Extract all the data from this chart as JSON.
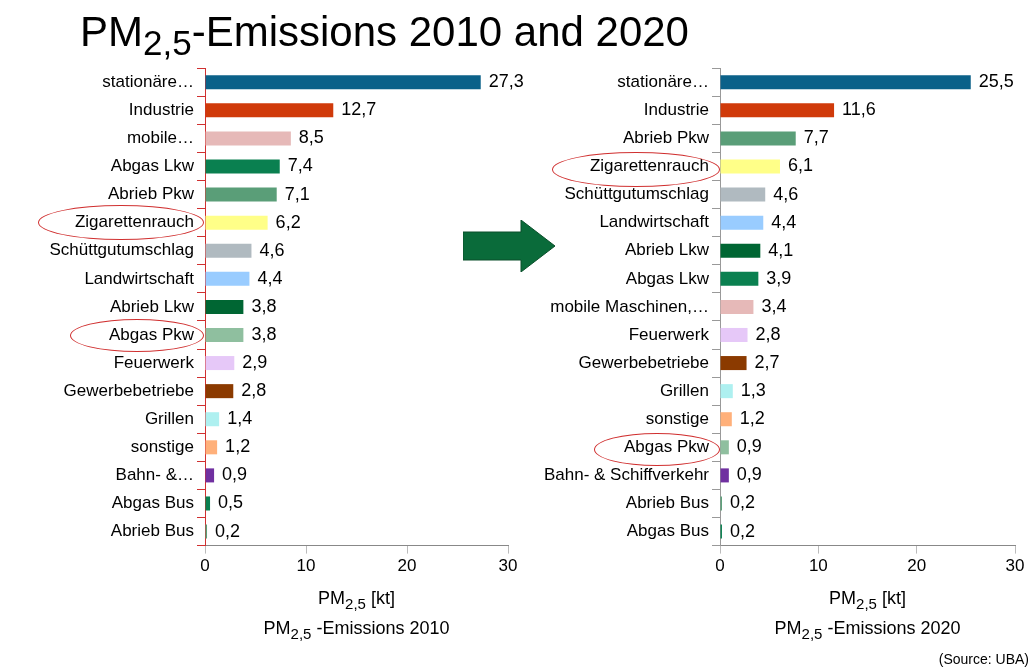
{
  "chart_data": [
    {
      "type": "bar",
      "orientation": "horizontal",
      "title": "PM$_{2,5}$-Emissions 2010 and 2020",
      "subtitle": "PM$_{2,5}$ -Emissions 2010",
      "xlabel": "PM$_{2,5}$ [kt]",
      "categories": [
        "stationäre…",
        "Industrie",
        "mobile…",
        "Abgas Lkw",
        "Abrieb Pkw",
        "Zigarettenrauch",
        "Schüttgutumschlag",
        "Landwirtschaft",
        "Abrieb Lkw",
        "Abgas Pkw",
        "Feuerwerk",
        "Gewerbebetriebe",
        "Grillen",
        "sonstige",
        "Bahn- &…",
        "Abgas Bus",
        "Abrieb Bus"
      ],
      "values": [
        27.3,
        12.7,
        8.5,
        7.4,
        7.1,
        6.2,
        4.6,
        4.4,
        3.8,
        3.8,
        2.9,
        2.8,
        1.4,
        1.2,
        0.9,
        0.5,
        0.2
      ],
      "value_labels": [
        "27,3",
        "12,7",
        "8,5",
        "7,4",
        "7,1",
        "6,2",
        "4,6",
        "4,4",
        "3,8",
        "3,8",
        "2,9",
        "2,8",
        "1,4",
        "1,2",
        "0,9",
        "0,5",
        "0,2"
      ],
      "colors": [
        "#0b6189",
        "#d03a0a",
        "#e6b9b8",
        "#0a8050",
        "#5a9e78",
        "#ffff88",
        "#b0bac0",
        "#99ccff",
        "#006633",
        "#8fbf9f",
        "#e6c8f8",
        "#8b3a00",
        "#aef0f0",
        "#ffb07a",
        "#7030a0",
        "#0a8050",
        "#5a9e78"
      ],
      "xlim": [
        0,
        30
      ],
      "xticks": [
        0,
        10,
        20,
        30
      ],
      "grid": false,
      "legend": false
    },
    {
      "type": "bar",
      "orientation": "horizontal",
      "subtitle": "PM$_{2,5}$ -Emissions 2020",
      "xlabel": "PM$_{2,5}$ [kt]",
      "annotations": [
        "(Source: UBA)"
      ],
      "categories": [
        "stationäre…",
        "Industrie",
        "Abrieb Pkw",
        "Zigarettenrauch",
        "Schüttgutumschlag",
        "Landwirtschaft",
        "Abrieb Lkw",
        "Abgas Lkw",
        "mobile Maschinen,…",
        "Feuerwerk",
        "Gewerbebetriebe",
        "Grillen",
        "sonstige",
        "Abgas Pkw",
        "Bahn- & Schiffverkehr",
        "Abrieb Bus",
        "Abgas Bus"
      ],
      "values": [
        25.5,
        11.6,
        7.7,
        6.1,
        4.6,
        4.4,
        4.1,
        3.9,
        3.4,
        2.8,
        2.7,
        1.3,
        1.2,
        0.9,
        0.9,
        0.2,
        0.2
      ],
      "value_labels": [
        "25,5",
        "11,6",
        "7,7",
        "6,1",
        "4,6",
        "4,4",
        "4,1",
        "3,9",
        "3,4",
        "2,8",
        "2,7",
        "1,3",
        "1,2",
        "0,9",
        "0,9",
        "0,2",
        "0,2"
      ],
      "colors": [
        "#0b6189",
        "#d03a0a",
        "#5a9e78",
        "#ffff88",
        "#b0bac0",
        "#99ccff",
        "#006633",
        "#0a8050",
        "#e6b9b8",
        "#e6c8f8",
        "#8b3a00",
        "#aef0f0",
        "#ffb07a",
        "#8fbf9f",
        "#7030a0",
        "#5a9e78",
        "#0a8050"
      ],
      "xlim": [
        0,
        30
      ],
      "xticks": [
        0,
        10,
        20,
        30
      ],
      "grid": false,
      "legend": false
    }
  ]
}
